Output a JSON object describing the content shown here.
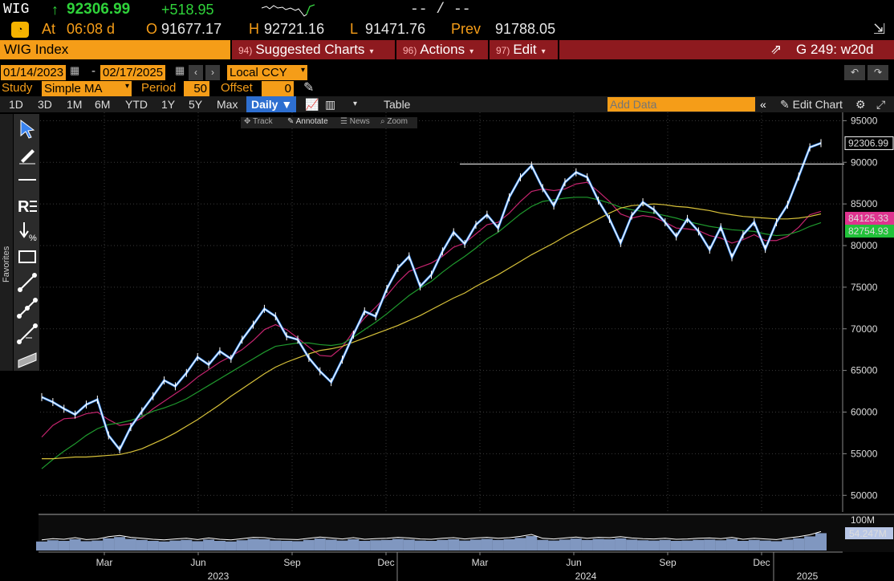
{
  "quote": {
    "ticker": "WIG",
    "last": "92306.99",
    "change": "+518.95",
    "dashes": "-- / --",
    "time_label": "At",
    "time": "06:08 d",
    "open_label": "O",
    "open": "91677.17",
    "high_label": "H",
    "high": "92721.16",
    "low_label": "L",
    "low": "91471.76",
    "prev_label": "Prev",
    "prev": "91788.05"
  },
  "command_bar": {
    "security": "WIG Index",
    "suggested": {
      "num": "94)",
      "label": "Suggested Charts"
    },
    "actions": {
      "num": "96)",
      "label": "Actions"
    },
    "edit": {
      "num": "97)",
      "label": "Edit"
    },
    "right": "G 249: w20d"
  },
  "range": {
    "start": "01/14/2023",
    "end": "02/17/2025",
    "currency": "Local CCY"
  },
  "study": {
    "label": "Study",
    "value": "Simple MA",
    "period_label": "Period",
    "period": "50",
    "offset_label": "Offset",
    "offset": "0"
  },
  "toolbar": {
    "periods": [
      "1D",
      "3D",
      "1M",
      "6M",
      "YTD",
      "1Y",
      "5Y",
      "Max"
    ],
    "frequency": "Daily ▼",
    "table": "Table",
    "add_data_placeholder": "Add Data",
    "edit_chart": "Edit Chart"
  },
  "mini_toolbar": {
    "track": "Track",
    "annotate": "Annotate",
    "news": "News",
    "zoom": "Zoom"
  },
  "sidebar": {
    "favorites": "Favorites"
  },
  "chart_data": {
    "type": "line",
    "ylim": [
      48000,
      96000
    ],
    "y_ticks": [
      95000,
      90000,
      85000,
      80000,
      75000,
      70000,
      65000,
      60000,
      55000,
      50000
    ],
    "y_tick_labels": [
      "95000",
      "90000",
      "85000",
      "80000",
      "75000",
      "70000",
      "65000",
      "60000",
      "55000",
      "50000"
    ],
    "x_month_labels": [
      "Mar",
      "Jun",
      "Sep",
      "Dec",
      "Mar",
      "Jun",
      "Sep",
      "Dec"
    ],
    "x_year_labels": [
      "2023",
      "2024",
      "2025"
    ],
    "last_price_label": "92306.99",
    "ma_labels": [
      {
        "value": "84125.33",
        "color": "#e0338f"
      },
      {
        "value": "82754.93",
        "color": "#22c23a"
      }
    ],
    "volume_label": "54.247M",
    "volume_max_label": "100M",
    "reference_line": 89800,
    "colors": {
      "price": "#ffffff",
      "price_accent": "#3d8ff5",
      "ma_fast": "#c4246e",
      "ma_mid": "#1f9a2e",
      "ma_slow": "#d8c23a",
      "volume": "#8097c0"
    },
    "series": [
      {
        "name": "WIG",
        "values": [
          61800,
          61200,
          60400,
          59700,
          60900,
          61500,
          57200,
          55500,
          58200,
          60100,
          61900,
          63800,
          63100,
          64700,
          66600,
          65700,
          67300,
          66400,
          68700,
          70500,
          72400,
          71500,
          69100,
          68700,
          66500,
          64900,
          63600,
          66300,
          69300,
          72100,
          71500,
          74800,
          77300,
          78700,
          75100,
          76500,
          79300,
          81600,
          80200,
          82500,
          83700,
          82100,
          85800,
          88200,
          89600,
          86900,
          84800,
          87600,
          88800,
          88200,
          85400,
          83200,
          80300,
          83600,
          85200,
          84300,
          82800,
          81100,
          83200,
          81700,
          79500,
          82200,
          78600,
          81300,
          82800,
          79600,
          82800,
          84900,
          88300,
          91800,
          92300
        ]
      },
      {
        "name": "MA fast",
        "values": [
          57000,
          58400,
          59200,
          59300,
          59800,
          60000,
          59100,
          58400,
          58600,
          59300,
          60400,
          61300,
          62200,
          63100,
          64200,
          65100,
          66000,
          66700,
          67500,
          68600,
          69900,
          70500,
          69900,
          68900,
          67800,
          66800,
          66700,
          67800,
          69700,
          71300,
          72600,
          74000,
          75600,
          76900,
          77400,
          77900,
          78700,
          79800,
          80300,
          81400,
          82500,
          82800,
          83900,
          85300,
          86500,
          86800,
          86600,
          86800,
          87400,
          87600,
          86500,
          85300,
          83800,
          83300,
          83600,
          83400,
          82800,
          82100,
          82000,
          81800,
          81200,
          80900,
          80300,
          80700,
          81300,
          80600,
          80600,
          81100,
          82200,
          83700,
          84100
        ]
      },
      {
        "name": "MA mid",
        "values": [
          53200,
          54300,
          55300,
          56200,
          57200,
          58000,
          58500,
          58700,
          59000,
          59500,
          60100,
          60500,
          61000,
          61600,
          62400,
          63200,
          64000,
          64800,
          65600,
          66400,
          67200,
          67900,
          68100,
          68300,
          68300,
          68100,
          68000,
          68200,
          69000,
          69900,
          70800,
          71800,
          72900,
          74000,
          74900,
          75700,
          76800,
          77800,
          78700,
          79700,
          80800,
          81600,
          82700,
          83800,
          84700,
          85300,
          85500,
          85700,
          85800,
          85800,
          85500,
          85100,
          84600,
          84300,
          84100,
          83900,
          83600,
          83300,
          82900,
          82600,
          82300,
          82100,
          81900,
          81800,
          81700,
          81400,
          81200,
          81300,
          81700,
          82300,
          82750
        ]
      },
      {
        "name": "MA slow",
        "values": [
          54400,
          54400,
          54500,
          54600,
          54600,
          54700,
          54800,
          54900,
          55200,
          55600,
          56200,
          56800,
          57500,
          58300,
          59100,
          60000,
          60900,
          61900,
          62800,
          63700,
          64600,
          65400,
          66000,
          66500,
          67000,
          67400,
          67600,
          67900,
          68400,
          68900,
          69400,
          69900,
          70400,
          71000,
          71600,
          72300,
          73000,
          73700,
          74300,
          75100,
          75800,
          76500,
          77300,
          78100,
          78900,
          79600,
          80300,
          81100,
          81800,
          82500,
          83200,
          83900,
          84500,
          84800,
          84900,
          85000,
          84900,
          84700,
          84600,
          84400,
          84200,
          83900,
          83700,
          83500,
          83400,
          83300,
          83200,
          83200,
          83300,
          83500,
          83800
        ]
      },
      {
        "name": "Volume",
        "values": [
          28,
          32,
          30,
          35,
          29,
          31,
          38,
          42,
          36,
          33,
          30,
          28,
          31,
          33,
          29,
          34,
          30,
          28,
          32,
          36,
          35,
          31,
          30,
          29,
          33,
          37,
          34,
          31,
          35,
          30,
          32,
          33,
          36,
          34,
          31,
          30,
          33,
          35,
          31,
          34,
          36,
          33,
          35,
          39,
          45,
          33,
          31,
          34,
          37,
          33,
          36,
          35,
          38,
          34,
          32,
          31,
          33,
          30,
          31,
          33,
          34,
          32,
          36,
          30,
          33,
          31,
          29,
          34,
          38,
          44,
          54
        ]
      }
    ]
  }
}
